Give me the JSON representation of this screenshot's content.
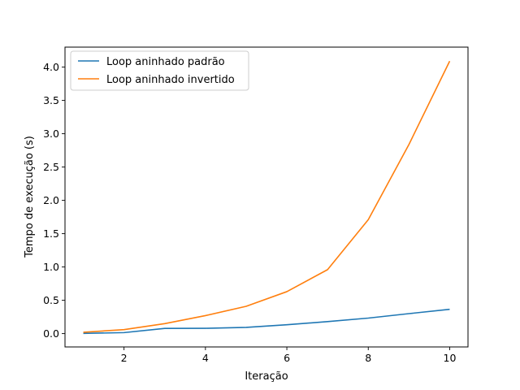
{
  "chart_data": {
    "type": "line",
    "x": [
      1,
      2,
      3,
      4,
      5,
      6,
      7,
      8,
      9,
      10
    ],
    "series": [
      {
        "name": "Loop aninhado padrão",
        "color": "#1f77b4",
        "values": [
          0.003,
          0.015,
          0.078,
          0.08,
          0.093,
          0.133,
          0.18,
          0.233,
          0.3,
          0.365
        ]
      },
      {
        "name": "Loop aninhado invertido",
        "color": "#ff7f0e",
        "values": [
          0.02,
          0.06,
          0.15,
          0.27,
          0.41,
          0.63,
          0.96,
          1.71,
          2.84,
          4.09
        ]
      }
    ],
    "xlabel": "Iteração",
    "ylabel": "Tempo de execução (s)",
    "xlim": [
      0.55,
      10.45
    ],
    "ylim": [
      -0.2,
      4.3
    ],
    "xticks": [
      2,
      4,
      6,
      8,
      10
    ],
    "yticks": [
      0.0,
      0.5,
      1.0,
      1.5,
      2.0,
      2.5,
      3.0,
      3.5,
      4.0
    ],
    "xtick_labels": [
      "2",
      "4",
      "6",
      "8",
      "10"
    ],
    "ytick_labels": [
      "0.0",
      "0.5",
      "1.0",
      "1.5",
      "2.0",
      "2.5",
      "3.0",
      "3.5",
      "4.0"
    ],
    "grid": false,
    "legend_position": "upper-left"
  }
}
